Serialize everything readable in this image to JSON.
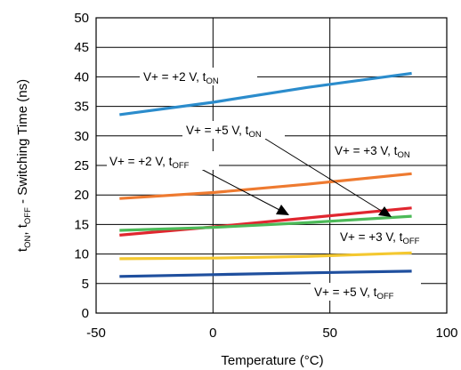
{
  "chart_data": {
    "type": "line",
    "xlabel": "Temperature (°C)",
    "ylabel": {
      "p1": "t",
      "s1": "ON",
      "p2": ", t",
      "s2": "OFF",
      "p3": " - Switching Time (ns)"
    },
    "xlim": [
      -50,
      100
    ],
    "ylim": [
      0,
      50
    ],
    "xticks": [
      -50,
      0,
      50,
      100
    ],
    "yticks": [
      0,
      5,
      10,
      15,
      20,
      25,
      30,
      35,
      40,
      45,
      50
    ],
    "grid": {
      "vertical": [
        0,
        50
      ],
      "horizontal": [
        0,
        5,
        10,
        15,
        20,
        25,
        30,
        35,
        40,
        45,
        50
      ]
    },
    "series": [
      {
        "key": "p2_on",
        "color": "#2b8ccc",
        "points": [
          [
            -40,
            33.6
          ],
          [
            0,
            35.7
          ],
          [
            40,
            38.2
          ],
          [
            85,
            40.6
          ]
        ]
      },
      {
        "key": "p3_on",
        "color": "#ee7a30",
        "points": [
          [
            -40,
            19.4
          ],
          [
            0,
            20.4
          ],
          [
            40,
            21.8
          ],
          [
            85,
            23.6
          ]
        ]
      },
      {
        "key": "p5_on",
        "color": "#e0262f",
        "points": [
          [
            -40,
            13.2
          ],
          [
            0,
            14.6
          ],
          [
            40,
            16.1
          ],
          [
            85,
            17.8
          ]
        ]
      },
      {
        "key": "p3_off",
        "color": "#4cba58",
        "points": [
          [
            -40,
            14.0
          ],
          [
            0,
            14.5
          ],
          [
            40,
            15.3
          ],
          [
            85,
            16.4
          ]
        ]
      },
      {
        "key": "p2_off",
        "color": "#f4c830",
        "points": [
          [
            -40,
            9.2
          ],
          [
            0,
            9.3
          ],
          [
            40,
            9.6
          ],
          [
            85,
            10.2
          ]
        ]
      },
      {
        "key": "p5_off",
        "color": "#1f4f9e",
        "points": [
          [
            -40,
            6.2
          ],
          [
            0,
            6.5
          ],
          [
            40,
            6.8
          ],
          [
            85,
            7.1
          ]
        ]
      }
    ],
    "annotations": [
      {
        "key": "p2_on",
        "prefix": "V+ = +2 V, t",
        "sub": "ON"
      },
      {
        "key": "p5_on",
        "prefix": "V+ = +5 V, t",
        "sub": "ON"
      },
      {
        "key": "p3_on",
        "prefix": "V+ = +3 V, t",
        "sub": "ON"
      },
      {
        "key": "p2_off",
        "prefix": "V+ = +2 V, t",
        "sub": "OFF"
      },
      {
        "key": "p3_off",
        "prefix": "V+ = +3 V, t",
        "sub": "OFF"
      },
      {
        "key": "p5_off",
        "prefix": "V+ = +5 V, t",
        "sub": "OFF"
      }
    ]
  }
}
